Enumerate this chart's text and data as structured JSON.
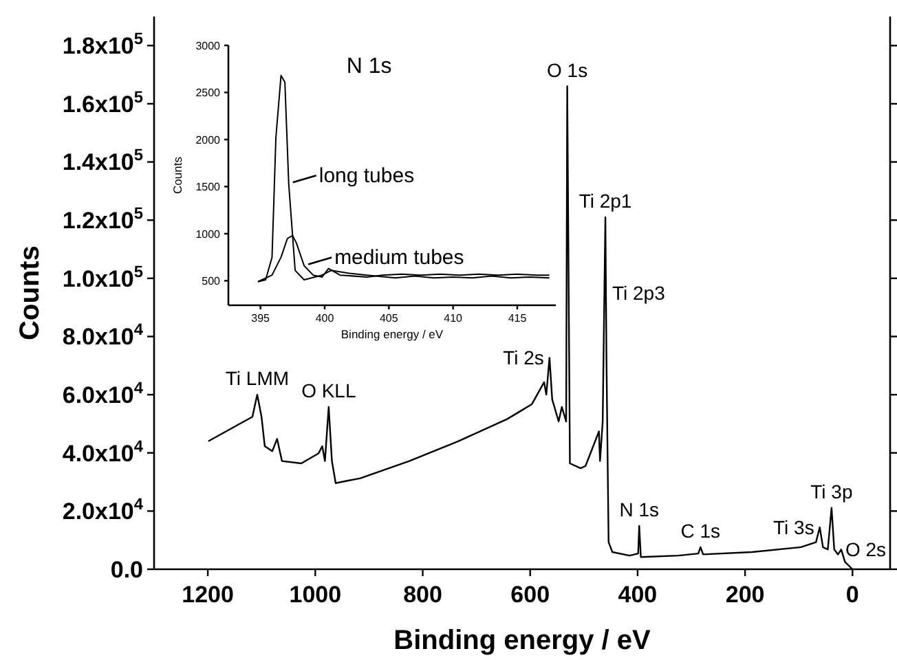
{
  "chart_data": [
    {
      "type": "line",
      "xlabel": "Binding energy / eV",
      "ylabel": "Counts",
      "xlim": [
        1300,
        -70
      ],
      "xticks": [
        1200,
        1000,
        800,
        600,
        400,
        200,
        0
      ],
      "ylim": [
        0,
        190000
      ],
      "yticks": [
        {
          "value": 0,
          "label": "0.0"
        },
        {
          "value": 20000,
          "label": "2.0x10$^{4}$"
        },
        {
          "value": 40000,
          "label": "4.0x10$^{4}$"
        },
        {
          "value": 60000,
          "label": "6.0x10$^{4}$"
        },
        {
          "value": 80000,
          "label": "8.0x10$^{4}$"
        },
        {
          "value": 100000,
          "label": "1.0x10$^{5}$"
        },
        {
          "value": 120000,
          "label": "1.2x10$^{5}$"
        },
        {
          "value": 140000,
          "label": "1.4x10$^{5}$"
        },
        {
          "value": 160000,
          "label": "1.6x10$^{5}$"
        },
        {
          "value": 180000,
          "label": "1.8x10$^{5}$"
        }
      ],
      "series": [
        {
          "color": "#000000",
          "x": [
            1199,
            1117,
            1108,
            1100,
            1094,
            1080,
            1071,
            1062,
            1026,
            994,
            987,
            982,
            975,
            969,
            962,
            916,
            825,
            734,
            643,
            597,
            574,
            570,
            564,
            559,
            547,
            541,
            533,
            531,
            526,
            506,
            497,
            479,
            472,
            470,
            465,
            460,
            458,
            454,
            447,
            415,
            399,
            397,
            394,
            324,
            287,
            283,
            278,
            187,
            96,
            68,
            61,
            55,
            46,
            39,
            34,
            27,
            21,
            14,
            0
          ],
          "values": [
            44000,
            52400,
            60000,
            52400,
            42300,
            40600,
            44800,
            37200,
            36400,
            39800,
            42300,
            37200,
            55800,
            37200,
            29600,
            31300,
            37200,
            44000,
            51600,
            56700,
            64300,
            60000,
            72700,
            58400,
            50800,
            55800,
            50800,
            166000,
            36400,
            34700,
            35500,
            44000,
            47400,
            37200,
            50800,
            121000,
            72700,
            9300,
            5900,
            4700,
            5400,
            14900,
            4200,
            4700,
            5400,
            7600,
            5100,
            5900,
            7600,
            9300,
            14400,
            7600,
            6800,
            21100,
            6800,
            5100,
            6800,
            2500,
            0
          ]
        }
      ],
      "annotations": [
        {
          "text": "Ti LMM",
          "x": 1108,
          "y": 60000
        },
        {
          "text": "O KLL",
          "x": 975,
          "y": 55800
        },
        {
          "text": "O 1s",
          "x": 531,
          "y": 166000
        },
        {
          "text": "Ti 2p1",
          "x": 460,
          "y": 121000
        },
        {
          "text": "Ti 2p3",
          "x": 455,
          "y": 95000
        },
        {
          "text": "Ti 2s",
          "x": 564,
          "y": 72700
        },
        {
          "text": "N 1s",
          "x": 397,
          "y": 14900
        },
        {
          "text": "C 1s",
          "x": 283,
          "y": 7600
        },
        {
          "text": "Ti 3s",
          "x": 61,
          "y": 14400
        },
        {
          "text": "Ti 3p",
          "x": 39,
          "y": 21100
        },
        {
          "text": "O 2s",
          "x": 21,
          "y": 6800
        }
      ]
    },
    {
      "type": "line",
      "title": "N 1s",
      "xlabel": "Binding energy / eV",
      "ylabel": "Counts",
      "xlim": [
        392.5,
        418
      ],
      "xticks": [
        395,
        400,
        405,
        410,
        415
      ],
      "ylim": [
        240,
        3000
      ],
      "yticks": [
        500,
        1000,
        1500,
        2000,
        2500,
        3000
      ],
      "legend": "right",
      "series": [
        {
          "name": "long tubes",
          "color": "#000000",
          "x": [
            394.8,
            395.4,
            395.9,
            396.2,
            396.6,
            396.9,
            397.2,
            397.7,
            398.4,
            399.8,
            400.5,
            401.9,
            403.3,
            404,
            405.5,
            407,
            408.5,
            410,
            411.5,
            413,
            414.5,
            416,
            417.5
          ],
          "values": [
            490,
            510,
            750,
            2020,
            2680,
            2610,
            1530,
            610,
            510,
            560,
            610,
            580,
            560,
            550,
            530,
            550,
            530,
            540,
            530,
            550,
            530,
            540,
            530
          ]
        },
        {
          "name": "medium tubes",
          "color": "#000000",
          "x": [
            394.8,
            395.9,
            396.6,
            397.1,
            397.5,
            397.8,
            398.4,
            399.1,
            399.8,
            400.3,
            401.2,
            403.3,
            404.5,
            406,
            407.5,
            409,
            410.5,
            412,
            413.5,
            415,
            416.5,
            417.5
          ],
          "values": [
            490,
            560,
            750,
            950,
            980,
            900,
            660,
            560,
            540,
            630,
            560,
            540,
            560,
            570,
            560,
            570,
            560,
            570,
            560,
            570,
            560,
            560
          ]
        }
      ]
    }
  ]
}
